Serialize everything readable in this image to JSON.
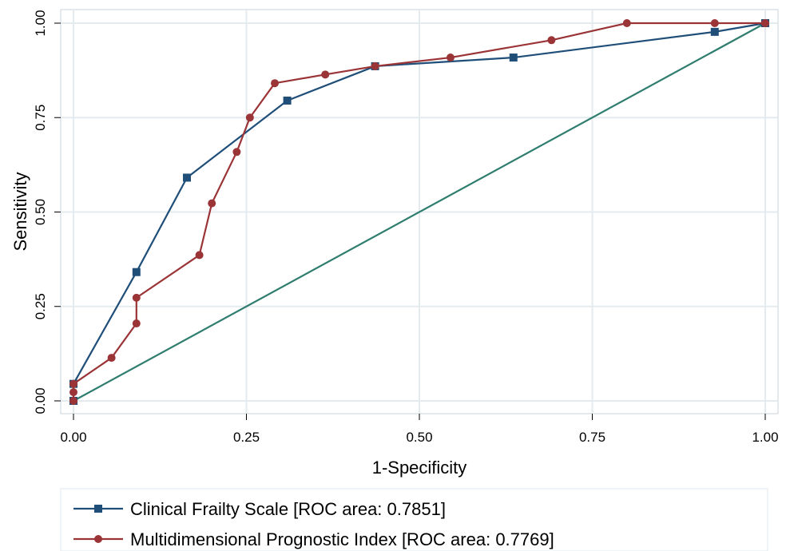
{
  "chart_data": {
    "type": "line",
    "title": "",
    "xlabel": "1-Specificity",
    "ylabel": "Sensitivity",
    "xlim": [
      0,
      1
    ],
    "ylim": [
      0,
      1
    ],
    "x_ticks": [
      "0.00",
      "0.25",
      "0.50",
      "0.75",
      "1.00"
    ],
    "y_ticks": [
      "0.00",
      "0.25",
      "0.50",
      "0.75",
      "1.00"
    ],
    "grid": true,
    "legend_position": "bottom",
    "series": [
      {
        "name": "Clinical Frailty Scale [ROC area: 0.7851]",
        "color": "#1f4e79",
        "marker": "square",
        "points": [
          [
            0.0,
            0.0
          ],
          [
            0.0,
            0.045
          ],
          [
            0.091,
            0.341
          ],
          [
            0.164,
            0.591
          ],
          [
            0.309,
            0.795
          ],
          [
            0.436,
            0.886
          ],
          [
            0.636,
            0.909
          ],
          [
            0.927,
            0.977
          ],
          [
            1.0,
            1.0
          ]
        ]
      },
      {
        "name": "Multidimensional Prognostic Index [ROC area: 0.7769]",
        "color": "#9b3437",
        "marker": "circle",
        "points": [
          [
            0.0,
            0.0
          ],
          [
            0.0,
            0.023
          ],
          [
            0.0,
            0.045
          ],
          [
            0.055,
            0.114
          ],
          [
            0.091,
            0.205
          ],
          [
            0.091,
            0.273
          ],
          [
            0.182,
            0.386
          ],
          [
            0.2,
            0.523
          ],
          [
            0.236,
            0.659
          ],
          [
            0.255,
            0.75
          ],
          [
            0.291,
            0.841
          ],
          [
            0.364,
            0.864
          ],
          [
            0.436,
            0.886
          ],
          [
            0.545,
            0.909
          ],
          [
            0.691,
            0.955
          ],
          [
            0.8,
            1.0
          ],
          [
            0.927,
            1.0
          ],
          [
            1.0,
            1.0
          ]
        ]
      },
      {
        "name": "",
        "color": "#2e7d6e",
        "marker": "none",
        "points": [
          [
            0.0,
            0.0
          ],
          [
            1.0,
            1.0
          ]
        ]
      }
    ]
  }
}
